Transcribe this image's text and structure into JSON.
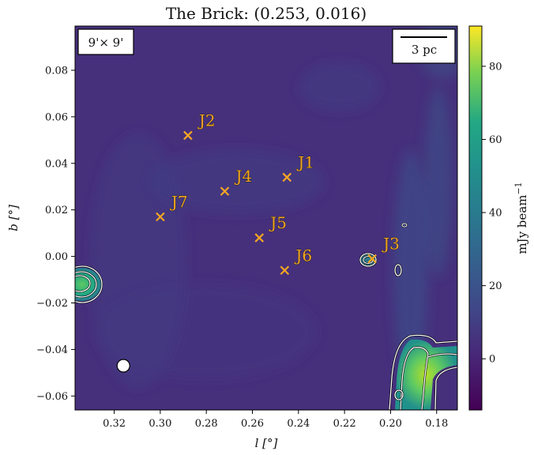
{
  "chart_data": {
    "type": "heatmap",
    "title": "The Brick: (0.253, 0.016)",
    "xlabel": "l [°]",
    "ylabel": "b [°]",
    "xlim": [
      0.337,
      0.171
    ],
    "ylim": [
      -0.066,
      0.099
    ],
    "x_inverted": true,
    "x_ticks": [
      0.32,
      0.3,
      0.28,
      0.26,
      0.24,
      0.22,
      0.2,
      0.18
    ],
    "x_tick_labels": [
      "0.32",
      "0.30",
      "0.28",
      "0.26",
      "0.24",
      "0.22",
      "0.20",
      "0.18"
    ],
    "y_ticks": [
      0.08,
      0.06,
      0.04,
      0.02,
      0.0,
      -0.02,
      -0.04,
      -0.06
    ],
    "y_tick_labels": [
      "0.08",
      "0.06",
      "0.04",
      "0.02",
      "0.00",
      "−0.02",
      "−0.04",
      "−0.06"
    ],
    "fov_label": "9'× 9'",
    "scalebar_label": "3 pc",
    "colorbar": {
      "label": "mJy beam",
      "label_exponent": "−1",
      "min": -14,
      "max": 91,
      "ticks": [
        0,
        20,
        40,
        60,
        80
      ],
      "tick_labels": [
        "0",
        "20",
        "40",
        "60",
        "80"
      ],
      "colormap": "viridis"
    },
    "sources": [
      {
        "name": "J1",
        "l": 0.245,
        "b": 0.034
      },
      {
        "name": "J2",
        "l": 0.288,
        "b": 0.052
      },
      {
        "name": "J3",
        "l": 0.208,
        "b": -0.001
      },
      {
        "name": "J4",
        "l": 0.272,
        "b": 0.028
      },
      {
        "name": "J5",
        "l": 0.257,
        "b": 0.008
      },
      {
        "name": "J6",
        "l": 0.246,
        "b": -0.006
      },
      {
        "name": "J7",
        "l": 0.3,
        "b": 0.017
      }
    ],
    "beam": {
      "l": 0.316,
      "b": -0.047
    },
    "colors": {
      "background": "#46307c",
      "marker": "#f5a623",
      "contour": "#ffffff",
      "frame": "#000000"
    }
  }
}
